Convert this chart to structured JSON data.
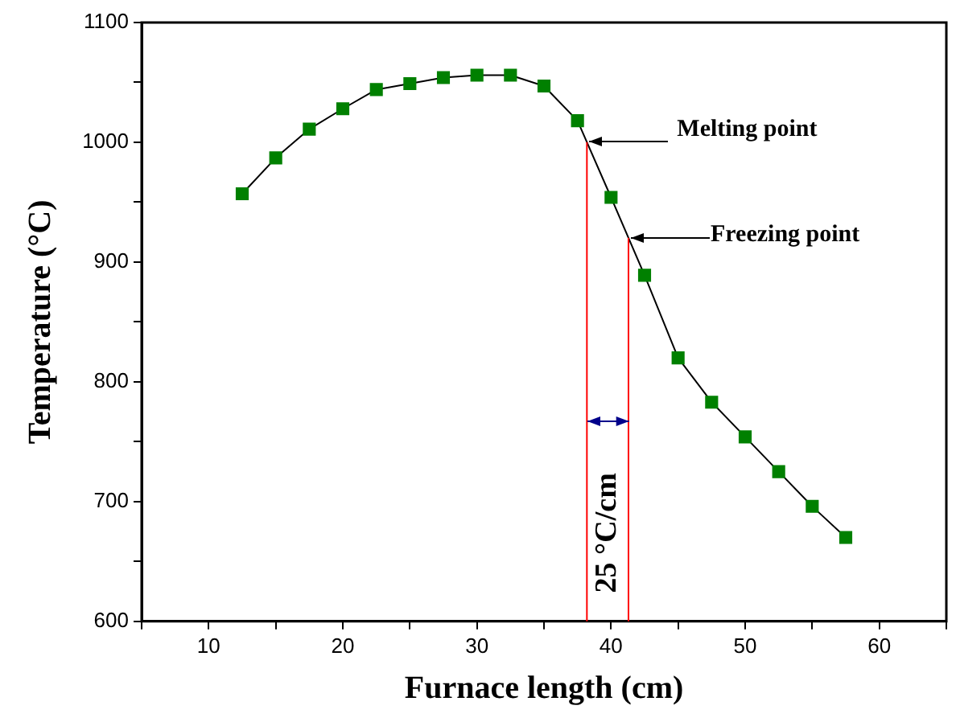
{
  "chart_data": {
    "type": "line",
    "xlabel": "Furnace length (cm)",
    "ylabel": "Temperature (°C)",
    "x": [
      12.5,
      15,
      17.5,
      20,
      22.5,
      25,
      27.5,
      30,
      32.5,
      35,
      37.5,
      40,
      42.5,
      45,
      47.5,
      50,
      52.5,
      55,
      57.5
    ],
    "series": [
      {
        "color": "#008000",
        "values": [
          957,
          987,
          1011,
          1028,
          1044,
          1049,
          1054,
          1056,
          1056,
          1047,
          1018,
          954,
          889,
          820,
          783,
          754,
          725,
          696,
          670
        ]
      }
    ],
    "marker": "square",
    "line_style": "solid",
    "xlim": [
      5,
      65
    ],
    "xticks": [
      {
        "value": 5,
        "label": null
      },
      10,
      {
        "value": 15,
        "label": null
      },
      20,
      {
        "value": 25,
        "label": null
      },
      30,
      {
        "value": 35,
        "label": null
      },
      40,
      {
        "value": 45,
        "label": null
      },
      50,
      {
        "value": 55,
        "label": null
      },
      60,
      {
        "value": 65,
        "label": null
      }
    ],
    "ylim": [
      600,
      1100
    ],
    "yticks": [
      600,
      {
        "value": 650,
        "label": null
      },
      700,
      {
        "value": 750,
        "label": null
      },
      800,
      {
        "value": 850,
        "label": null
      },
      900,
      {
        "value": 950,
        "label": null
      },
      1000,
      {
        "value": 1050,
        "label": null
      },
      1100
    ],
    "ref_lines": [
      {
        "axis": "x",
        "value": 38.2,
        "color": "#ff0000"
      },
      {
        "axis": "x",
        "value": 41.3,
        "color": "#ff0000"
      }
    ],
    "annotations": [
      "Melting point",
      "Freezing point",
      "25 °C/cm"
    ],
    "legend": false
  }
}
